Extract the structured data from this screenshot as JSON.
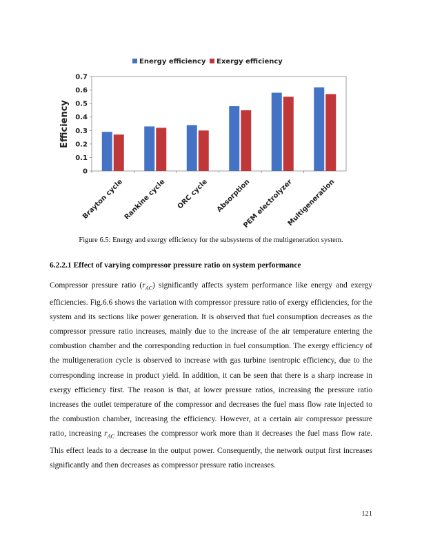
{
  "chart_data": {
    "type": "bar",
    "title": "",
    "xlabel": "",
    "ylabel": "Efficiency",
    "ylim": [
      0,
      0.7
    ],
    "yticks": [
      "0",
      "0.1",
      "0.2",
      "0.3",
      "0.4",
      "0.5",
      "0.6",
      "0.7"
    ],
    "categories": [
      "Brayton cycle",
      "Rankine cycle",
      "ORC cycle",
      "Absorption",
      "PEM electrolyzer",
      "Multigeneration"
    ],
    "series": [
      {
        "name": "Energy efficiency",
        "color": "#4472C4",
        "values": [
          0.29,
          0.33,
          0.34,
          0.48,
          0.58,
          0.62
        ]
      },
      {
        "name": "Exergy efficiency",
        "color": "#C0373A",
        "values": [
          0.27,
          0.32,
          0.3,
          0.45,
          0.55,
          0.57
        ]
      }
    ],
    "legend": "top-center",
    "grid": false
  },
  "caption": "Figure 6.5: Energy and exergy efficiency for the subsystems of the multigeneration system.",
  "section": {
    "heading": "6.2.2.1 Effect of varying compressor pressure ratio on system performance",
    "p1_a": "Compressor pressure ratio (",
    "p1_sym": "r",
    "p1_sub": "AC",
    "p1_b": ") significantly affects system performance like energy and exergy efficiencies. Fig.6.6 shows the variation with compressor pressure ratio of exergy efficiencies, for the system and its sections like power generation. It is observed that fuel consumption decreases as the compressor pressure ratio increases, mainly due to the increase of the air temperature entering the combustion chamber and the corresponding reduction in fuel consumption. The exergy efficiency of the multigeneration cycle is observed to increase with gas turbine isentropic efficiency, due to the corresponding increase in product yield. In addition, it can be seen that there is a sharp increase in exergy efficiency first. The reason is that, at lower pressure ratios, increasing the pressure ratio increases the outlet temperature of the compressor and decreases the fuel mass flow rate injected to the combustion chamber, increasing the efficiency. However, at a certain air compressor pressure ratio, increasing ",
    "p1_sym2": "r",
    "p1_sub2": "AC",
    "p1_c": " increases the compressor work more than it decreases the fuel mass flow rate. This effect leads to a decrease in the output power. Consequently, the network output first increases significantly and then decreases as compressor pressure ratio increases."
  },
  "page_number": "121"
}
